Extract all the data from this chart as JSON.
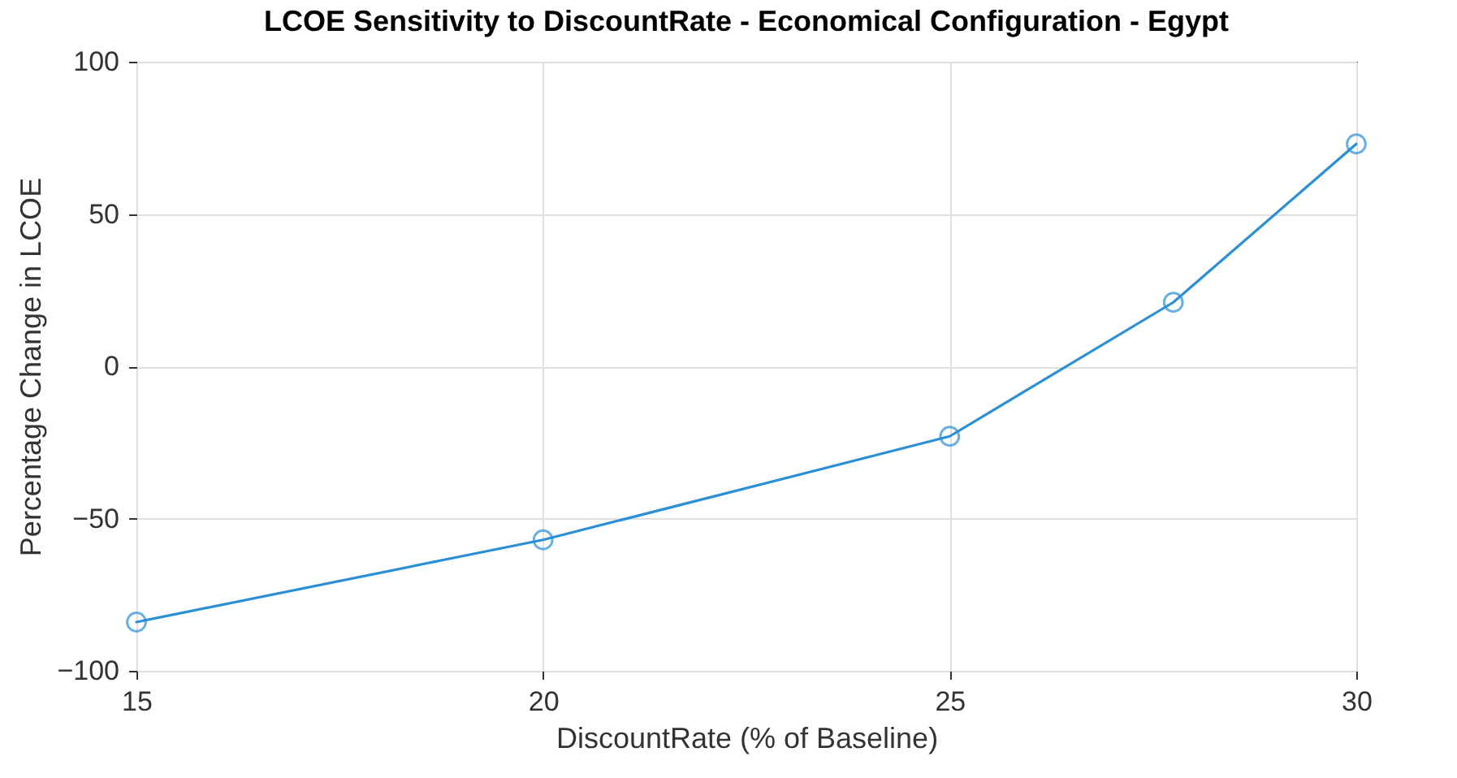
{
  "chart_data": {
    "type": "line",
    "title": "LCOE Sensitivity to DiscountRate - Economical Configuration - Egypt",
    "xlabel": "DiscountRate (% of Baseline)",
    "ylabel": "Percentage Change in LCOE",
    "x": [
      15,
      20,
      25,
      27.75,
      30
    ],
    "series": [
      {
        "color": "#2b8fd6",
        "values": [
          -84,
          -57,
          -23,
          21,
          73
        ]
      }
    ],
    "xlim": [
      15,
      30
    ],
    "xticks": [
      15,
      20,
      25,
      30
    ],
    "ylim": [
      -100,
      100
    ],
    "yticks": [
      -100,
      -50,
      0,
      50,
      100
    ],
    "grid": true,
    "marker": "circle",
    "line_style": "solid"
  }
}
